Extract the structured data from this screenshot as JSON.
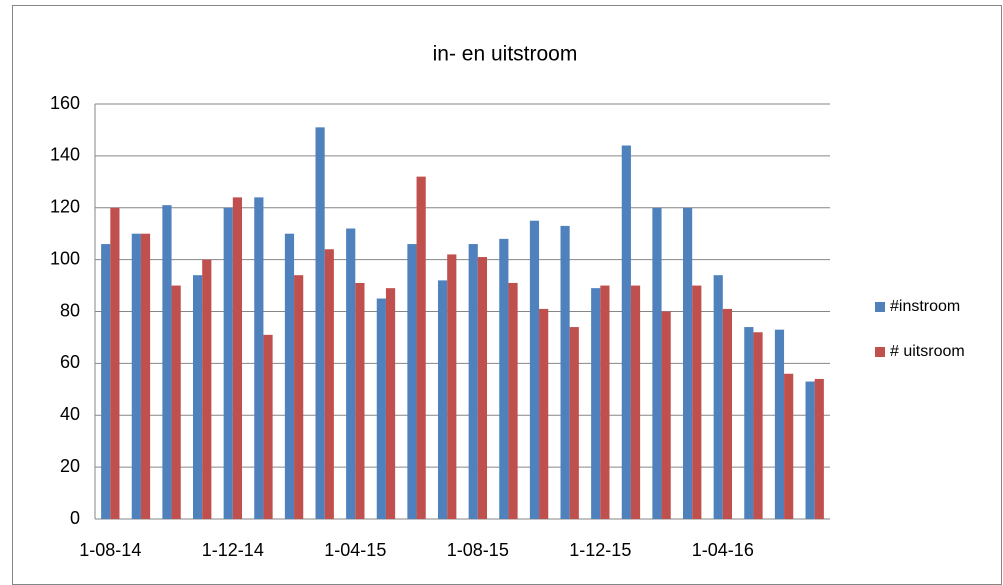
{
  "chart_data": {
    "type": "bar",
    "title": "in- en uitstroom",
    "categories": [
      "1-08-14",
      null,
      null,
      null,
      "1-12-14",
      null,
      null,
      null,
      "1-04-15",
      null,
      null,
      null,
      "1-08-15",
      null,
      null,
      null,
      "1-12-15",
      null,
      null,
      null,
      "1-04-16",
      null,
      null,
      null
    ],
    "series": [
      {
        "name": "#instroom",
        "color": "#4f81bd",
        "values": [
          106,
          110,
          121,
          94,
          120,
          124,
          110,
          151,
          112,
          85,
          106,
          92,
          106,
          108,
          115,
          113,
          89,
          144,
          120,
          120,
          94,
          74,
          73,
          53
        ]
      },
      {
        "name": "# uitsroom",
        "color": "#c0504d",
        "values": [
          120,
          110,
          90,
          100,
          124,
          71,
          94,
          104,
          91,
          89,
          132,
          102,
          101,
          91,
          81,
          74,
          90,
          90,
          80,
          90,
          81,
          72,
          56,
          54
        ]
      }
    ],
    "ylim": [
      0,
      160
    ],
    "yticks": [
      0,
      20,
      40,
      60,
      80,
      100,
      120,
      140,
      160
    ],
    "grid": true,
    "legend": "right"
  }
}
